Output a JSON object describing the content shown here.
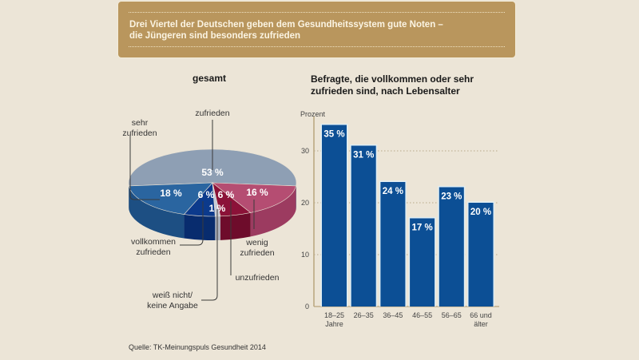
{
  "banner": {
    "title": "Drei Viertel der Deutschen geben dem Gesundheitssystem gute Noten –\ndie Jüngeren sind besonders zufrieden"
  },
  "source": "Quelle: TK-Meinungspuls Gesundheit 2014",
  "colors": {
    "background": "#ece5d7",
    "banner": "#b9965d",
    "bar": "#0c4f95",
    "pie_zufrieden": "#8e9fb4",
    "pie_sehr_zufrieden": "#2a65a0",
    "pie_vollkommen": "#0c3a8c",
    "pie_weiss_nicht": "#c7ccd8",
    "pie_unzufrieden": "#8b1238",
    "pie_wenig": "#b54d72"
  },
  "chart_data": [
    {
      "type": "pie",
      "title": "gesamt",
      "slices": [
        {
          "label": "zufrieden",
          "value": 53,
          "value_label": "53 %"
        },
        {
          "label": "wenig zufrieden",
          "value": 16,
          "value_label": "16 %"
        },
        {
          "label": "unzufrieden",
          "value": 6,
          "value_label": "6 %"
        },
        {
          "label": "weiß nicht/ keine Angabe",
          "value": 1,
          "value_label": "1 %"
        },
        {
          "label": "vollkommen zufrieden",
          "value": 6,
          "value_label": "6 %"
        },
        {
          "label": "sehr zufrieden",
          "value": 18,
          "value_label": "18 %"
        }
      ],
      "callouts": {
        "zufrieden": "zufrieden",
        "sehr_zufrieden": "sehr\nzufrieden",
        "vollkommen": "vollkommen\nzufrieden",
        "weiss_nicht": "weiß nicht/\nkeine Angabe",
        "unzufrieden": "unzufrieden",
        "wenig": "wenig\nzufrieden"
      }
    },
    {
      "type": "bar",
      "title": "Befragte, die vollkommen oder sehr\nzufrieden sind, nach Lebensalter",
      "ylabel": "Prozent",
      "xlabel": "",
      "categories": [
        "18–25 Jahre",
        "26–35",
        "36–45",
        "46–55",
        "56–65",
        "66 und älter"
      ],
      "category_lines": [
        [
          "18–25",
          "Jahre"
        ],
        [
          "26–35"
        ],
        [
          "36–45"
        ],
        [
          "46–55"
        ],
        [
          "56–65"
        ],
        [
          "66 und",
          "älter"
        ]
      ],
      "values": [
        35,
        31,
        24,
        17,
        23,
        20
      ],
      "value_labels": [
        "35 %",
        "31 %",
        "24 %",
        "17 %",
        "23 %",
        "20 %"
      ],
      "ylim": [
        0,
        36
      ],
      "yticks": [
        0,
        10,
        20,
        30
      ],
      "grid": true
    }
  ]
}
